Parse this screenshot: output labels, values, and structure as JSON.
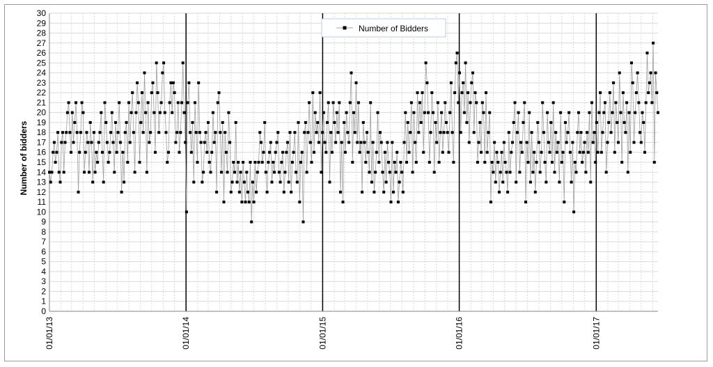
{
  "chart_data": {
    "type": "line",
    "title": "",
    "xlabel": "",
    "ylabel": "Number of bidders",
    "ylim": [
      0,
      30
    ],
    "yticks": [
      "0",
      "1",
      "2",
      "3",
      "4",
      "5",
      "6",
      "7",
      "8",
      "9",
      "10",
      "11",
      "12",
      "13",
      "14",
      "15",
      "16",
      "17",
      "18",
      "19",
      "20",
      "21",
      "22",
      "23",
      "24",
      "25",
      "26",
      "27",
      "28",
      "29",
      "30"
    ],
    "xlim": [
      "2013-01-01",
      "2017-06-15"
    ],
    "x_tick_labels": [
      {
        "date": "2013-01-01",
        "label": "01/01/13"
      },
      {
        "date": "2014-01-01",
        "label": "01/01/14"
      },
      {
        "date": "2015-01-01",
        "label": "01/01/15"
      },
      {
        "date": "2016-01-01",
        "label": "01/01/16"
      },
      {
        "date": "2017-01-01",
        "label": "01/01/17"
      }
    ],
    "year_lines": [
      "2014-01-01",
      "2015-01-01",
      "2016-01-01",
      "2017-01-01"
    ],
    "grid": true,
    "legend": {
      "position": "top-center",
      "entries": [
        "Number of Bidders"
      ]
    },
    "colors": {
      "series": "#000000",
      "line": "#a0a0a0",
      "grid": "#d9d9d9",
      "year_line": "#000000"
    },
    "series": [
      {
        "name": "Number of Bidders",
        "x_start": "2013-01-01",
        "x_end": "2017-06-15",
        "values": [
          14,
          13,
          14,
          16,
          17,
          15,
          16,
          18,
          14,
          13,
          17,
          18,
          14,
          17,
          18,
          20,
          21,
          18,
          16,
          20,
          17,
          19,
          21,
          18,
          12,
          16,
          18,
          21,
          20,
          14,
          16,
          18,
          17,
          14,
          19,
          17,
          13,
          18,
          14,
          16,
          15,
          17,
          18,
          20,
          16,
          13,
          21,
          19,
          17,
          15,
          16,
          18,
          20,
          17,
          14,
          19,
          16,
          18,
          21,
          17,
          12,
          16,
          13,
          18,
          19,
          15,
          21,
          17,
          20,
          22,
          18,
          14,
          20,
          23,
          21,
          15,
          19,
          22,
          18,
          24,
          20,
          14,
          21,
          17,
          18,
          22,
          23,
          20,
          16,
          25,
          22,
          18,
          20,
          21,
          24,
          25,
          20,
          18,
          15,
          16,
          21,
          23,
          20,
          23,
          22,
          17,
          18,
          21,
          16,
          18,
          21,
          25,
          20,
          17,
          10,
          21,
          23,
          18,
          16,
          19,
          13,
          21,
          18,
          15,
          23,
          18,
          17,
          13,
          14,
          17,
          18,
          16,
          19,
          15,
          14,
          16,
          20,
          17,
          18,
          12,
          21,
          22,
          18,
          14,
          19,
          11,
          18,
          16,
          14,
          20,
          17,
          12,
          13,
          15,
          14,
          19,
          13,
          15,
          12,
          14,
          11,
          15,
          13,
          11,
          14,
          12,
          11,
          15,
          9,
          13,
          11,
          15,
          12,
          14,
          15,
          18,
          17,
          15,
          16,
          19,
          14,
          12,
          15,
          16,
          17,
          13,
          15,
          14,
          16,
          17,
          18,
          14,
          13,
          15,
          16,
          12,
          14,
          16,
          17,
          13,
          18,
          12,
          15,
          16,
          18,
          14,
          13,
          19,
          11,
          15,
          16,
          9,
          18,
          19,
          14,
          18,
          21,
          17,
          15,
          22,
          16,
          20,
          18,
          19,
          17,
          22,
          14,
          18,
          20,
          17,
          16,
          19,
          21,
          13,
          18,
          16,
          21,
          19,
          17,
          20,
          18,
          21,
          12,
          17,
          11,
          19,
          16,
          20,
          18,
          17,
          21,
          24,
          15,
          20,
          18,
          23,
          17,
          21,
          16,
          17,
          12,
          19,
          17,
          15,
          18,
          16,
          14,
          21,
          13,
          17,
          12,
          14,
          16,
          20,
          15,
          18,
          17,
          14,
          12,
          16,
          13,
          17,
          15,
          14,
          11,
          17,
          12,
          15,
          14,
          16,
          11,
          13,
          15,
          14,
          12,
          17,
          20,
          15,
          19,
          16,
          18,
          21,
          14,
          20,
          17,
          15,
          22,
          18,
          21,
          19,
          22,
          16,
          20,
          25,
          23,
          20,
          15,
          18,
          22,
          20,
          14,
          19,
          17,
          21,
          15,
          18,
          20,
          16,
          18,
          21,
          19,
          18,
          16,
          20,
          23,
          18,
          15,
          22,
          25,
          26,
          21,
          24,
          18,
          22,
          23,
          20,
          25,
          19,
          22,
          17,
          21,
          23,
          24,
          18,
          22,
          21,
          15,
          17,
          19,
          16,
          21,
          20,
          15,
          22,
          16,
          18,
          20,
          11,
          15,
          14,
          17,
          13,
          16,
          15,
          12,
          14,
          16,
          13,
          17,
          15,
          14,
          12,
          18,
          14,
          16,
          17,
          19,
          21,
          13,
          18,
          20,
          14,
          17,
          16,
          19,
          21,
          11,
          17,
          15,
          20,
          13,
          18,
          14,
          16,
          12,
          15,
          19,
          17,
          14,
          16,
          21,
          18,
          15,
          13,
          20,
          17,
          16,
          19,
          15,
          21,
          14,
          18,
          16,
          17,
          13,
          20,
          15,
          16,
          11,
          19,
          17,
          18,
          20,
          16,
          13,
          17,
          10,
          15,
          14,
          18,
          20,
          16,
          18,
          15,
          16,
          17,
          14,
          18,
          16,
          20,
          13,
          21,
          17,
          18,
          15,
          19,
          16,
          20,
          22,
          16,
          18,
          20,
          21,
          14,
          17,
          19,
          22,
          18,
          20,
          23,
          16,
          21,
          19,
          17,
          24,
          20,
          15,
          22,
          19,
          18,
          21,
          14,
          20,
          16,
          25,
          23,
          17,
          20,
          22,
          24,
          21,
          18,
          17,
          20,
          19,
          16,
          21,
          26,
          22,
          23,
          24,
          21,
          27,
          15,
          24,
          22,
          20
        ]
      }
    ]
  }
}
